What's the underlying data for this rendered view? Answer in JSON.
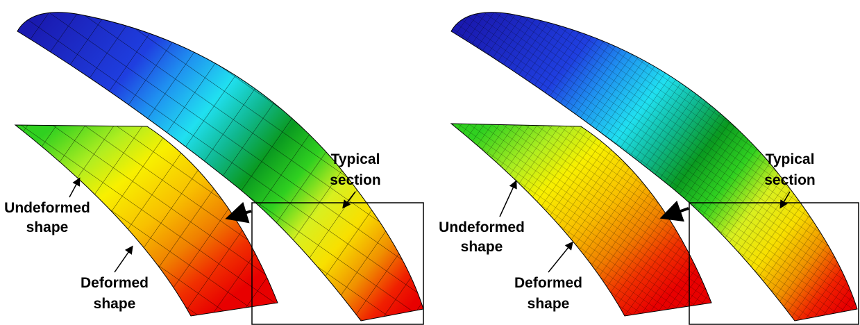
{
  "panels": [
    {
      "typical_section": [
        "Typical",
        "section"
      ],
      "undeformed_shape": [
        "Undeformed",
        "shape"
      ],
      "deformed_shape": [
        "Deformed",
        "shape"
      ]
    },
    {
      "typical_section": [
        "Typical",
        "section"
      ],
      "undeformed_shape": [
        "Undeformed",
        "shape"
      ],
      "deformed_shape": [
        "Deformed",
        "shape"
      ]
    }
  ]
}
